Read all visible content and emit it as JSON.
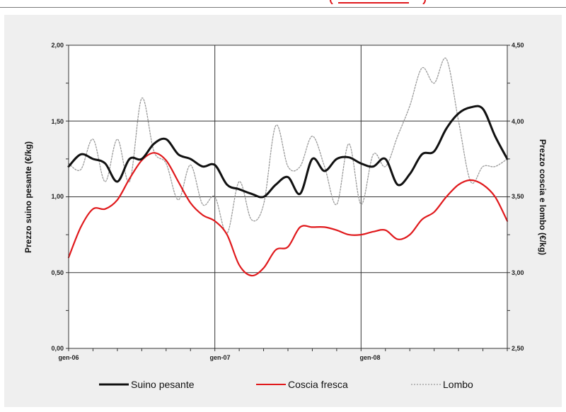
{
  "chart_data": {
    "type": "line",
    "title": "",
    "ylabel_left": "Prezzo suino pesante (€/kg)",
    "ylabel_right": "Prezzo coscia e lombo  (€/kg)",
    "xlabel": "",
    "x_tick_labels": [
      "gen-06",
      "gen-07",
      "gen-08"
    ],
    "y_left_ticks": [
      "0,00",
      "0,50",
      "1,00",
      "1,50",
      "2,00"
    ],
    "y_right_ticks": [
      "2,50",
      "3,00",
      "3,50",
      "4,00",
      "4,50"
    ],
    "ylim_left": [
      0,
      2
    ],
    "ylim_right": [
      2.5,
      4.5
    ],
    "xlim_months": [
      0,
      36
    ],
    "grid": true,
    "legend_position": "bottom",
    "colors": {
      "suino": "#111111",
      "coscia": "#e0191c",
      "lombo": "#9a9a9a"
    },
    "series": [
      {
        "name": "Suino pesante",
        "axis": "left",
        "x": [
          0,
          1,
          2,
          3,
          4,
          5,
          6,
          7,
          8,
          9,
          10,
          11,
          12,
          13,
          14,
          15,
          16,
          17,
          18,
          19,
          20,
          21,
          22,
          23,
          24,
          25,
          26,
          27,
          28,
          29,
          30,
          31,
          32,
          33,
          34,
          35,
          36
        ],
        "values": [
          1.2,
          1.28,
          1.25,
          1.22,
          1.1,
          1.25,
          1.25,
          1.35,
          1.38,
          1.28,
          1.25,
          1.2,
          1.21,
          1.08,
          1.05,
          1.02,
          1.0,
          1.08,
          1.13,
          1.02,
          1.25,
          1.17,
          1.25,
          1.26,
          1.22,
          1.2,
          1.25,
          1.08,
          1.15,
          1.28,
          1.3,
          1.45,
          1.55,
          1.59,
          1.58,
          1.4,
          1.25
        ]
      },
      {
        "name": "Coscia fresca",
        "axis": "right",
        "x": [
          0,
          1,
          2,
          3,
          4,
          5,
          6,
          7,
          8,
          9,
          10,
          11,
          12,
          13,
          14,
          15,
          16,
          17,
          18,
          19,
          20,
          21,
          22,
          23,
          24,
          25,
          26,
          27,
          28,
          29,
          30,
          31,
          32,
          33,
          34,
          35,
          36
        ],
        "values": [
          3.1,
          3.3,
          3.42,
          3.42,
          3.48,
          3.62,
          3.74,
          3.79,
          3.74,
          3.6,
          3.46,
          3.38,
          3.34,
          3.25,
          3.05,
          2.98,
          3.03,
          3.15,
          3.17,
          3.3,
          3.3,
          3.3,
          3.28,
          3.25,
          3.25,
          3.27,
          3.28,
          3.22,
          3.25,
          3.35,
          3.4,
          3.5,
          3.58,
          3.61,
          3.58,
          3.5,
          3.34
        ]
      },
      {
        "name": "Lombo",
        "axis": "right",
        "x": [
          0,
          1,
          2,
          3,
          4,
          5,
          6,
          7,
          8,
          9,
          10,
          11,
          12,
          13,
          14,
          15,
          16,
          17,
          18,
          19,
          20,
          21,
          22,
          23,
          24,
          25,
          26,
          27,
          28,
          29,
          30,
          31,
          32,
          33,
          34,
          35,
          36
        ],
        "values": [
          3.72,
          3.68,
          3.88,
          3.6,
          3.88,
          3.6,
          4.15,
          3.8,
          3.72,
          3.48,
          3.71,
          3.45,
          3.5,
          3.26,
          3.6,
          3.35,
          3.45,
          3.97,
          3.7,
          3.7,
          3.9,
          3.7,
          3.45,
          3.85,
          3.45,
          3.78,
          3.7,
          3.9,
          4.1,
          4.35,
          4.25,
          4.41,
          4.0,
          3.6,
          3.7,
          3.7,
          3.75
        ]
      }
    ]
  }
}
